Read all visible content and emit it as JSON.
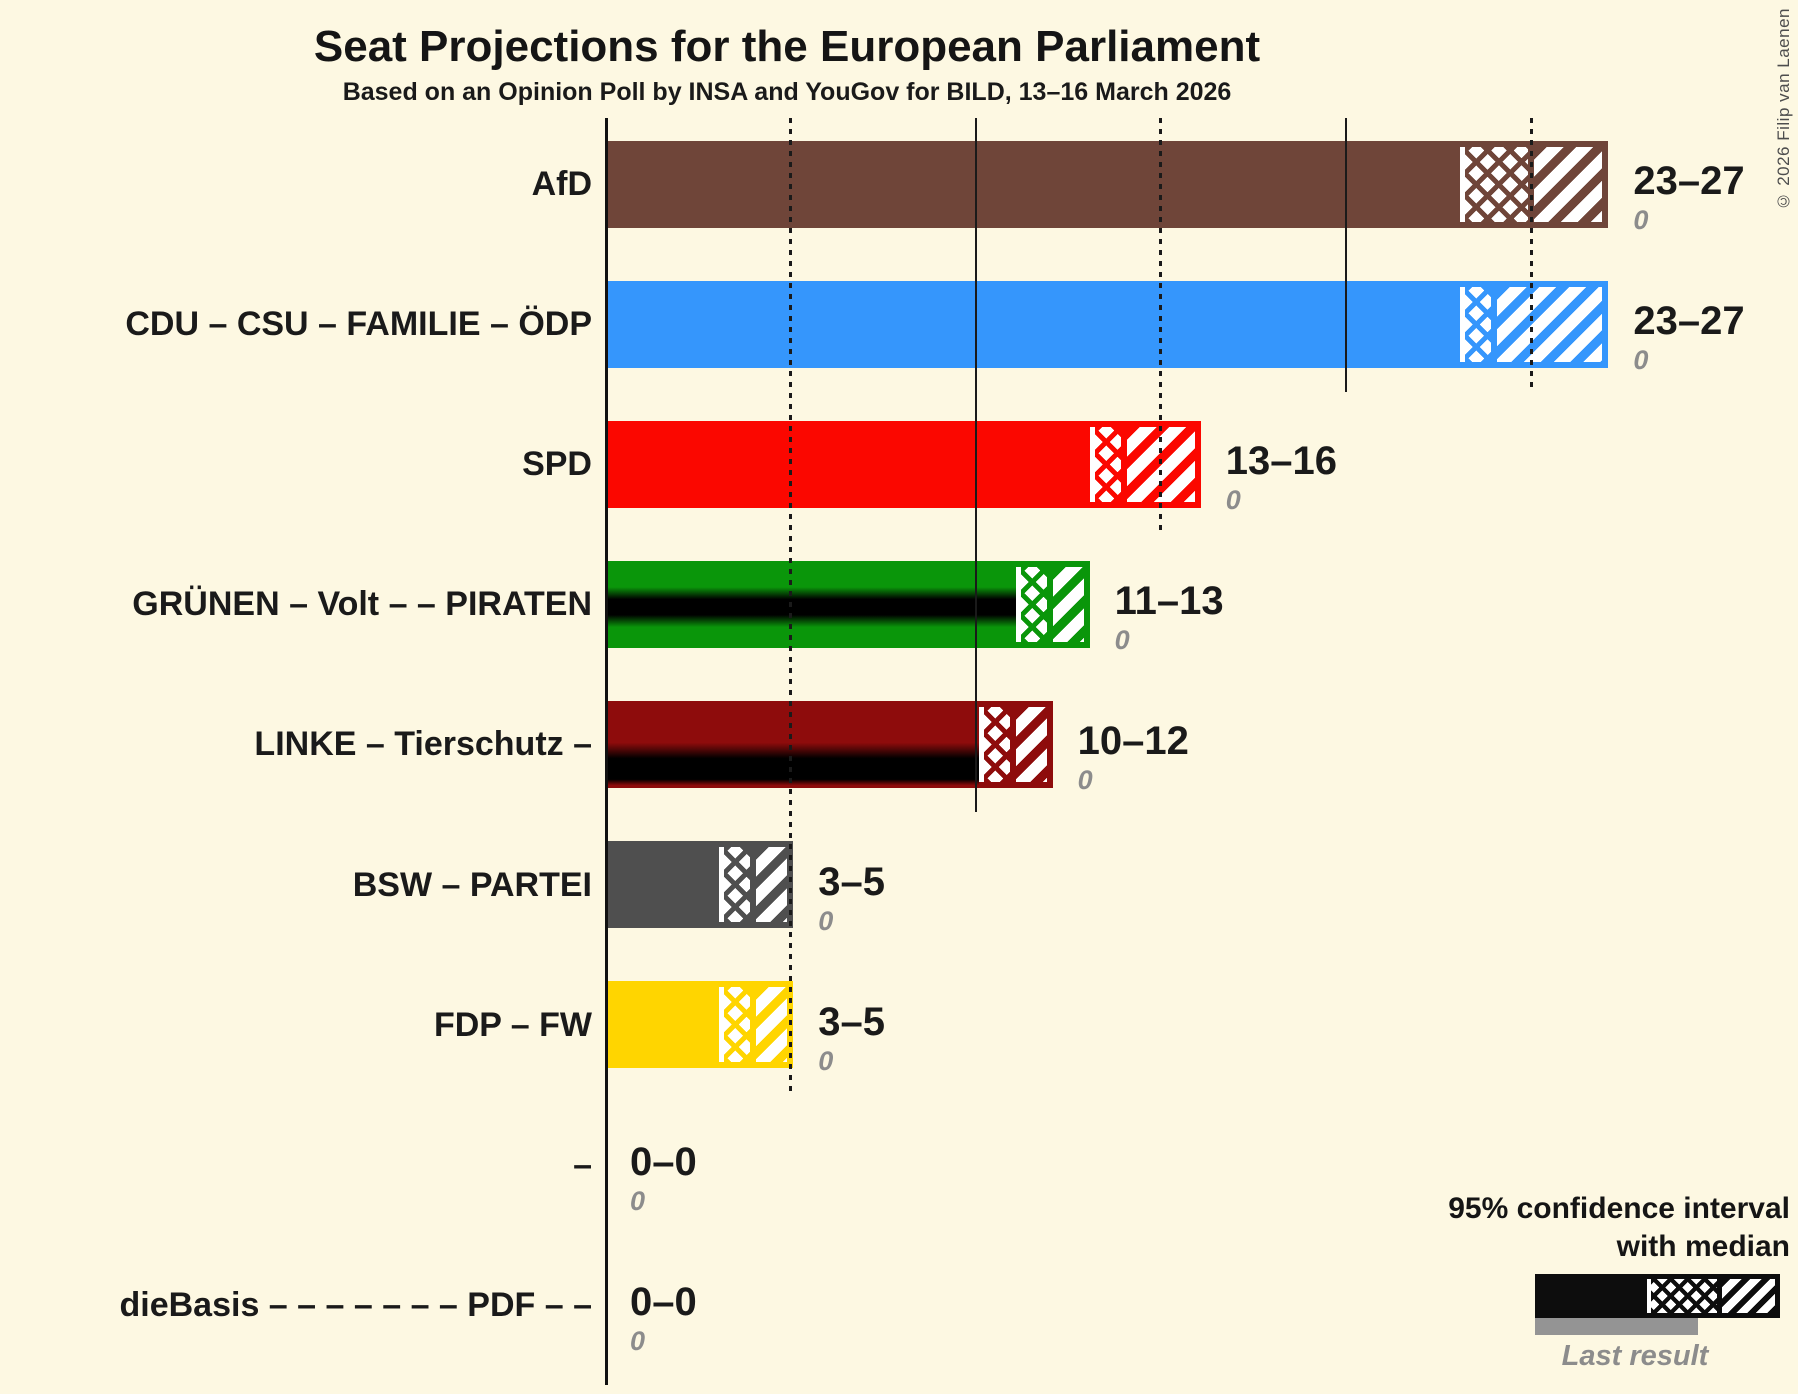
{
  "title": "Seat Projections for the European Parliament",
  "subtitle": "Based on an Opinion Poll by INSA and YouGov for BILD, 13–16 March 2026",
  "copyright": "© 2026 Filip van Laenen",
  "background_color": "#fdf8e2",
  "chart_data": {
    "type": "bar",
    "orientation": "horizontal",
    "unit": "seats",
    "axis": {
      "min": 0,
      "max": 27,
      "solid_gridlines": [
        10,
        20
      ],
      "dotted_gridlines": [
        5,
        15,
        25
      ]
    },
    "parties": [
      {
        "label": "AfD",
        "color": "#6f4539",
        "ci_low": 23,
        "median": 25,
        "ci_high": 27,
        "range_label": "23–27",
        "last_result": "0",
        "band": "none"
      },
      {
        "label": "CDU – CSU – FAMILIE – ÖDP",
        "color": "#3596fc",
        "ci_low": 23,
        "median": 24,
        "ci_high": 27,
        "range_label": "23–27",
        "last_result": "0",
        "band": "none"
      },
      {
        "label": "SPD",
        "color": "#fb0700",
        "ci_low": 13,
        "median": 14,
        "ci_high": 16,
        "range_label": "13–16",
        "last_result": "0",
        "band": "none"
      },
      {
        "label": "GRÜNEN – Volt – – PIRATEN",
        "color": "#0a960a",
        "ci_low": 11,
        "median": 12,
        "ci_high": 13,
        "range_label": "11–13",
        "last_result": "0",
        "band": "center"
      },
      {
        "label": "LINKE – Tierschutz –",
        "color": "#8e0c0c",
        "ci_low": 10,
        "median": 11,
        "ci_high": 12,
        "range_label": "10–12",
        "last_result": "0",
        "band": "lower"
      },
      {
        "label": "BSW – PARTEI",
        "color": "#4f4f4f",
        "ci_low": 3,
        "median": 4,
        "ci_high": 5,
        "range_label": "3–5",
        "last_result": "0",
        "band": "none"
      },
      {
        "label": "FDP – FW",
        "color": "#ffd500",
        "ci_low": 3,
        "median": 4,
        "ci_high": 5,
        "range_label": "3–5",
        "last_result": "0",
        "band": "none"
      },
      {
        "label": "–",
        "color": "#1a1a1a",
        "ci_low": 0,
        "median": 0,
        "ci_high": 0,
        "range_label": "0–0",
        "last_result": "0",
        "band": "none"
      },
      {
        "label": "dieBasis – – – – – – – PDF – –",
        "color": "#1a1a1a",
        "ci_low": 0,
        "median": 0,
        "ci_high": 0,
        "range_label": "0–0",
        "last_result": "0",
        "band": "none"
      }
    ]
  },
  "legend": {
    "line1": "95% confidence interval",
    "line2": "with median",
    "last_result_label": "Last result",
    "sample_color": "#0d0d0d",
    "last_result_color": "#949494"
  }
}
